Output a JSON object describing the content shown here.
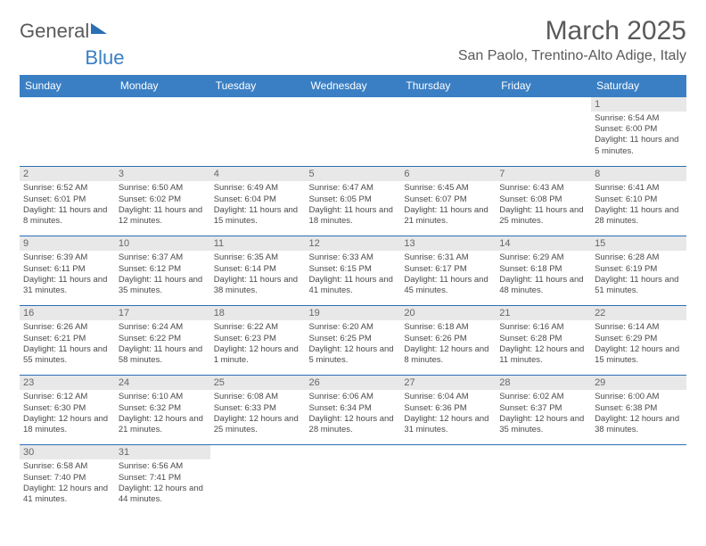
{
  "brand": {
    "part1": "General",
    "part2": "Blue"
  },
  "title": "March 2025",
  "location": "San Paolo, Trentino-Alto Adige, Italy",
  "colors": {
    "header_bg": "#3a7fc4",
    "header_text": "#ffffff",
    "border": "#2b6fb5",
    "daynum_bg": "#e8e8e8",
    "text": "#4a4a4a",
    "title_text": "#5a5a5a"
  },
  "weekdays": [
    "Sunday",
    "Monday",
    "Tuesday",
    "Wednesday",
    "Thursday",
    "Friday",
    "Saturday"
  ],
  "weeks": [
    [
      {
        "empty": true
      },
      {
        "empty": true
      },
      {
        "empty": true
      },
      {
        "empty": true
      },
      {
        "empty": true
      },
      {
        "empty": true
      },
      {
        "n": "1",
        "sunrise": "Sunrise: 6:54 AM",
        "sunset": "Sunset: 6:00 PM",
        "daylight": "Daylight: 11 hours and 5 minutes."
      }
    ],
    [
      {
        "n": "2",
        "sunrise": "Sunrise: 6:52 AM",
        "sunset": "Sunset: 6:01 PM",
        "daylight": "Daylight: 11 hours and 8 minutes."
      },
      {
        "n": "3",
        "sunrise": "Sunrise: 6:50 AM",
        "sunset": "Sunset: 6:02 PM",
        "daylight": "Daylight: 11 hours and 12 minutes."
      },
      {
        "n": "4",
        "sunrise": "Sunrise: 6:49 AM",
        "sunset": "Sunset: 6:04 PM",
        "daylight": "Daylight: 11 hours and 15 minutes."
      },
      {
        "n": "5",
        "sunrise": "Sunrise: 6:47 AM",
        "sunset": "Sunset: 6:05 PM",
        "daylight": "Daylight: 11 hours and 18 minutes."
      },
      {
        "n": "6",
        "sunrise": "Sunrise: 6:45 AM",
        "sunset": "Sunset: 6:07 PM",
        "daylight": "Daylight: 11 hours and 21 minutes."
      },
      {
        "n": "7",
        "sunrise": "Sunrise: 6:43 AM",
        "sunset": "Sunset: 6:08 PM",
        "daylight": "Daylight: 11 hours and 25 minutes."
      },
      {
        "n": "8",
        "sunrise": "Sunrise: 6:41 AM",
        "sunset": "Sunset: 6:10 PM",
        "daylight": "Daylight: 11 hours and 28 minutes."
      }
    ],
    [
      {
        "n": "9",
        "sunrise": "Sunrise: 6:39 AM",
        "sunset": "Sunset: 6:11 PM",
        "daylight": "Daylight: 11 hours and 31 minutes."
      },
      {
        "n": "10",
        "sunrise": "Sunrise: 6:37 AM",
        "sunset": "Sunset: 6:12 PM",
        "daylight": "Daylight: 11 hours and 35 minutes."
      },
      {
        "n": "11",
        "sunrise": "Sunrise: 6:35 AM",
        "sunset": "Sunset: 6:14 PM",
        "daylight": "Daylight: 11 hours and 38 minutes."
      },
      {
        "n": "12",
        "sunrise": "Sunrise: 6:33 AM",
        "sunset": "Sunset: 6:15 PM",
        "daylight": "Daylight: 11 hours and 41 minutes."
      },
      {
        "n": "13",
        "sunrise": "Sunrise: 6:31 AM",
        "sunset": "Sunset: 6:17 PM",
        "daylight": "Daylight: 11 hours and 45 minutes."
      },
      {
        "n": "14",
        "sunrise": "Sunrise: 6:29 AM",
        "sunset": "Sunset: 6:18 PM",
        "daylight": "Daylight: 11 hours and 48 minutes."
      },
      {
        "n": "15",
        "sunrise": "Sunrise: 6:28 AM",
        "sunset": "Sunset: 6:19 PM",
        "daylight": "Daylight: 11 hours and 51 minutes."
      }
    ],
    [
      {
        "n": "16",
        "sunrise": "Sunrise: 6:26 AM",
        "sunset": "Sunset: 6:21 PM",
        "daylight": "Daylight: 11 hours and 55 minutes."
      },
      {
        "n": "17",
        "sunrise": "Sunrise: 6:24 AM",
        "sunset": "Sunset: 6:22 PM",
        "daylight": "Daylight: 11 hours and 58 minutes."
      },
      {
        "n": "18",
        "sunrise": "Sunrise: 6:22 AM",
        "sunset": "Sunset: 6:23 PM",
        "daylight": "Daylight: 12 hours and 1 minute."
      },
      {
        "n": "19",
        "sunrise": "Sunrise: 6:20 AM",
        "sunset": "Sunset: 6:25 PM",
        "daylight": "Daylight: 12 hours and 5 minutes."
      },
      {
        "n": "20",
        "sunrise": "Sunrise: 6:18 AM",
        "sunset": "Sunset: 6:26 PM",
        "daylight": "Daylight: 12 hours and 8 minutes."
      },
      {
        "n": "21",
        "sunrise": "Sunrise: 6:16 AM",
        "sunset": "Sunset: 6:28 PM",
        "daylight": "Daylight: 12 hours and 11 minutes."
      },
      {
        "n": "22",
        "sunrise": "Sunrise: 6:14 AM",
        "sunset": "Sunset: 6:29 PM",
        "daylight": "Daylight: 12 hours and 15 minutes."
      }
    ],
    [
      {
        "n": "23",
        "sunrise": "Sunrise: 6:12 AM",
        "sunset": "Sunset: 6:30 PM",
        "daylight": "Daylight: 12 hours and 18 minutes."
      },
      {
        "n": "24",
        "sunrise": "Sunrise: 6:10 AM",
        "sunset": "Sunset: 6:32 PM",
        "daylight": "Daylight: 12 hours and 21 minutes."
      },
      {
        "n": "25",
        "sunrise": "Sunrise: 6:08 AM",
        "sunset": "Sunset: 6:33 PM",
        "daylight": "Daylight: 12 hours and 25 minutes."
      },
      {
        "n": "26",
        "sunrise": "Sunrise: 6:06 AM",
        "sunset": "Sunset: 6:34 PM",
        "daylight": "Daylight: 12 hours and 28 minutes."
      },
      {
        "n": "27",
        "sunrise": "Sunrise: 6:04 AM",
        "sunset": "Sunset: 6:36 PM",
        "daylight": "Daylight: 12 hours and 31 minutes."
      },
      {
        "n": "28",
        "sunrise": "Sunrise: 6:02 AM",
        "sunset": "Sunset: 6:37 PM",
        "daylight": "Daylight: 12 hours and 35 minutes."
      },
      {
        "n": "29",
        "sunrise": "Sunrise: 6:00 AM",
        "sunset": "Sunset: 6:38 PM",
        "daylight": "Daylight: 12 hours and 38 minutes."
      }
    ],
    [
      {
        "n": "30",
        "sunrise": "Sunrise: 6:58 AM",
        "sunset": "Sunset: 7:40 PM",
        "daylight": "Daylight: 12 hours and 41 minutes."
      },
      {
        "n": "31",
        "sunrise": "Sunrise: 6:56 AM",
        "sunset": "Sunset: 7:41 PM",
        "daylight": "Daylight: 12 hours and 44 minutes."
      },
      {
        "empty": true
      },
      {
        "empty": true
      },
      {
        "empty": true
      },
      {
        "empty": true
      },
      {
        "empty": true
      }
    ]
  ]
}
